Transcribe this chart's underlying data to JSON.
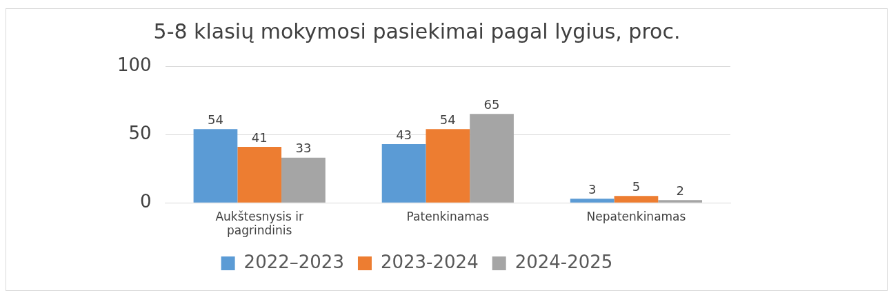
{
  "chart_data": {
    "type": "bar",
    "title": "5-8 klasių mokymosi pasiekimai pagal lygius, proc.",
    "categories": [
      "Aukštesnysis ir pagrindinis",
      "Patenkinamas",
      "Nepatenkinamas"
    ],
    "series": [
      {
        "name": "2022–2023",
        "color": "#5b9bd5",
        "values": [
          54,
          43,
          3
        ]
      },
      {
        "name": "2023-2024",
        "color": "#ed7d31",
        "values": [
          41,
          54,
          5
        ]
      },
      {
        "name": "2024-2025",
        "color": "#a5a5a5",
        "values": [
          33,
          65,
          2
        ]
      }
    ],
    "ylim": [
      0,
      100
    ],
    "yticks": [
      0,
      50,
      100
    ],
    "grid": "y",
    "legend": "bottom",
    "data_labels": true
  }
}
